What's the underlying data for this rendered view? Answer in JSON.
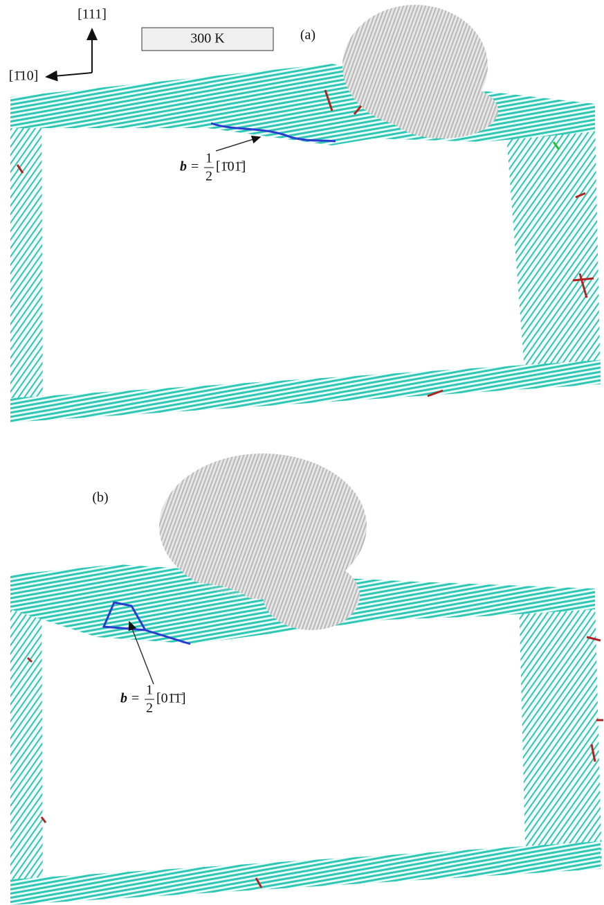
{
  "orientation": {
    "up": "[111]",
    "left": "[1̄10]"
  },
  "temperature": "300 K",
  "panels": [
    {
      "label": "(a)",
      "burgers": {
        "symbol": "b",
        "equals": "=",
        "numerator": "1",
        "denominator": "2",
        "vector": "[1̄01̄]"
      }
    },
    {
      "label": "(b)",
      "burgers": {
        "symbol": "b",
        "equals": "=",
        "numerator": "1",
        "denominator": "2",
        "vector": "[01̄1̄]"
      }
    }
  ]
}
